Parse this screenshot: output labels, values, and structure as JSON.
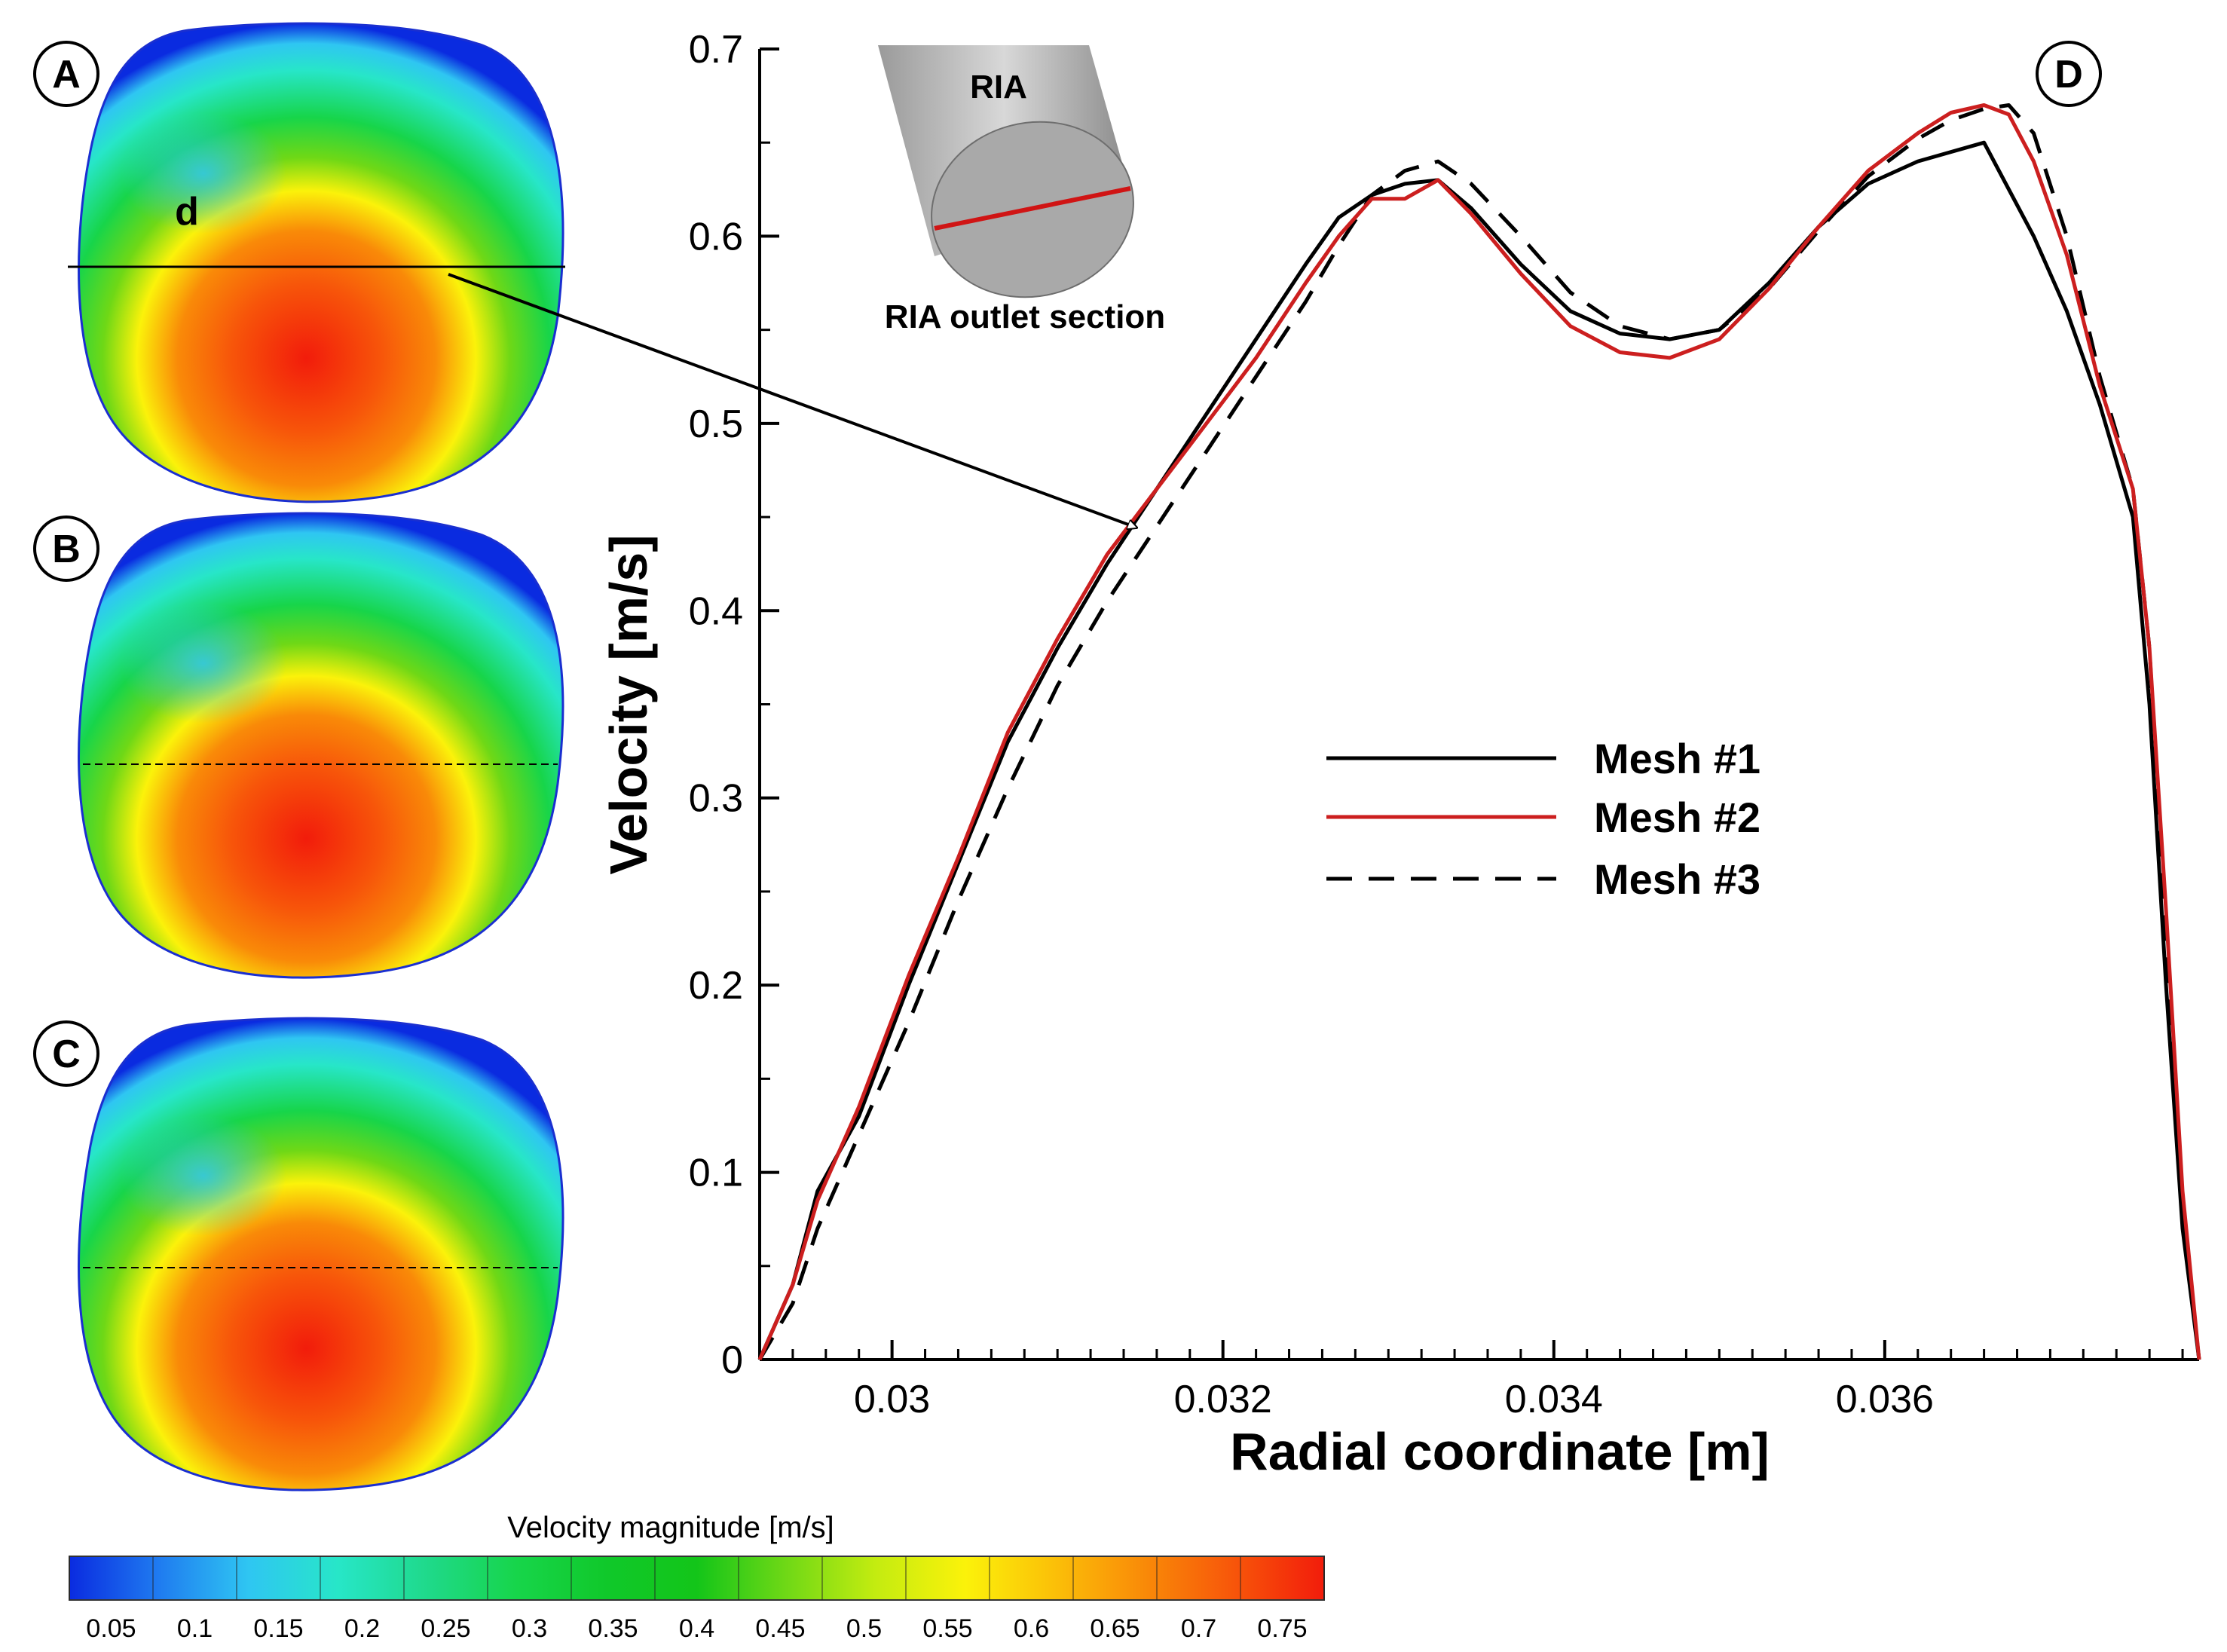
{
  "panels": {
    "labels": [
      "A",
      "B",
      "C",
      "D"
    ],
    "contour_marker": "d",
    "colorbar": {
      "title": "Velocity magnitude [m/s]",
      "ticks": [
        "0.05",
        "0.1",
        "0.15",
        "0.2",
        "0.25",
        "0.3",
        "0.35",
        "0.4",
        "0.45",
        "0.5",
        "0.55",
        "0.6",
        "0.65",
        "0.7",
        "0.75"
      ],
      "stops": [
        "#0a2be0",
        "#1f7bf0",
        "#2fc6f2",
        "#27e6c8",
        "#1fd98a",
        "#17d54a",
        "#10c82a",
        "#13c519",
        "#6fd816",
        "#c4ec10",
        "#fbf20a",
        "#fbbf08",
        "#f98a08",
        "#f7550a",
        "#f21c0b"
      ]
    }
  },
  "inset": {
    "label_top": "RIA",
    "label_bottom": "RIA outlet section"
  },
  "chart_data": {
    "type": "line",
    "xlabel": "Radial coordinate [m]",
    "ylabel": "Velocity [m/s]",
    "xlim": [
      0.0292,
      0.0379
    ],
    "ylim": [
      0,
      0.7
    ],
    "xticks": [
      0.03,
      0.032,
      0.034,
      0.036
    ],
    "xtick_labels": [
      "0.03",
      "0.032",
      "0.034",
      "0.036"
    ],
    "yticks": [
      0,
      0.1,
      0.2,
      0.3,
      0.4,
      0.5,
      0.6,
      0.7
    ],
    "ytick_labels": [
      "0",
      "0.1",
      "0.2",
      "0.3",
      "0.4",
      "0.5",
      "0.6",
      "0.7"
    ],
    "legend_position": "center-right",
    "series": [
      {
        "name": "Mesh #1",
        "color": "#000000",
        "dash": "solid",
        "points": [
          [
            0.0292,
            0.0
          ],
          [
            0.0294,
            0.04
          ],
          [
            0.02955,
            0.09
          ],
          [
            0.0298,
            0.13
          ],
          [
            0.0301,
            0.2
          ],
          [
            0.0304,
            0.265
          ],
          [
            0.0307,
            0.33
          ],
          [
            0.031,
            0.38
          ],
          [
            0.0313,
            0.425
          ],
          [
            0.0316,
            0.465
          ],
          [
            0.0319,
            0.505
          ],
          [
            0.0322,
            0.545
          ],
          [
            0.0325,
            0.585
          ],
          [
            0.0327,
            0.61
          ],
          [
            0.0329,
            0.622
          ],
          [
            0.0331,
            0.628
          ],
          [
            0.0333,
            0.63
          ],
          [
            0.0335,
            0.615
          ],
          [
            0.0338,
            0.585
          ],
          [
            0.0341,
            0.56
          ],
          [
            0.0344,
            0.548
          ],
          [
            0.0347,
            0.545
          ],
          [
            0.035,
            0.55
          ],
          [
            0.0353,
            0.575
          ],
          [
            0.0356,
            0.605
          ],
          [
            0.0359,
            0.628
          ],
          [
            0.0362,
            0.64
          ],
          [
            0.0364,
            0.645
          ],
          [
            0.0366,
            0.65
          ],
          [
            0.03675,
            0.625
          ],
          [
            0.0369,
            0.6
          ],
          [
            0.0371,
            0.56
          ],
          [
            0.0373,
            0.51
          ],
          [
            0.0375,
            0.45
          ],
          [
            0.0376,
            0.35
          ],
          [
            0.0377,
            0.2
          ],
          [
            0.0378,
            0.07
          ],
          [
            0.0379,
            0.0
          ]
        ]
      },
      {
        "name": "Mesh #2",
        "color": "#cc1f1f",
        "dash": "solid",
        "points": [
          [
            0.0292,
            0.0
          ],
          [
            0.0294,
            0.04
          ],
          [
            0.02955,
            0.085
          ],
          [
            0.0298,
            0.135
          ],
          [
            0.0301,
            0.205
          ],
          [
            0.0304,
            0.268
          ],
          [
            0.0307,
            0.335
          ],
          [
            0.031,
            0.385
          ],
          [
            0.0313,
            0.43
          ],
          [
            0.0316,
            0.465
          ],
          [
            0.0319,
            0.5
          ],
          [
            0.0322,
            0.535
          ],
          [
            0.0325,
            0.575
          ],
          [
            0.0327,
            0.6
          ],
          [
            0.0329,
            0.62
          ],
          [
            0.0331,
            0.62
          ],
          [
            0.0333,
            0.63
          ],
          [
            0.0335,
            0.612
          ],
          [
            0.0338,
            0.58
          ],
          [
            0.0341,
            0.552
          ],
          [
            0.0344,
            0.538
          ],
          [
            0.0347,
            0.535
          ],
          [
            0.035,
            0.545
          ],
          [
            0.0353,
            0.572
          ],
          [
            0.0356,
            0.605
          ],
          [
            0.0359,
            0.635
          ],
          [
            0.0362,
            0.655
          ],
          [
            0.0364,
            0.666
          ],
          [
            0.0366,
            0.67
          ],
          [
            0.03675,
            0.665
          ],
          [
            0.0369,
            0.64
          ],
          [
            0.0371,
            0.59
          ],
          [
            0.0373,
            0.52
          ],
          [
            0.0375,
            0.465
          ],
          [
            0.0376,
            0.38
          ],
          [
            0.0377,
            0.24
          ],
          [
            0.0378,
            0.09
          ],
          [
            0.0379,
            0.0
          ]
        ]
      },
      {
        "name": "Mesh #3",
        "color": "#000000",
        "dash": "dashed",
        "points": [
          [
            0.0292,
            0.0
          ],
          [
            0.0294,
            0.03
          ],
          [
            0.02955,
            0.07
          ],
          [
            0.0298,
            0.12
          ],
          [
            0.0301,
            0.18
          ],
          [
            0.0304,
            0.245
          ],
          [
            0.0307,
            0.305
          ],
          [
            0.031,
            0.36
          ],
          [
            0.0313,
            0.405
          ],
          [
            0.0316,
            0.445
          ],
          [
            0.0319,
            0.485
          ],
          [
            0.0322,
            0.525
          ],
          [
            0.0325,
            0.565
          ],
          [
            0.0327,
            0.595
          ],
          [
            0.0329,
            0.622
          ],
          [
            0.0331,
            0.635
          ],
          [
            0.0333,
            0.64
          ],
          [
            0.0335,
            0.628
          ],
          [
            0.0338,
            0.6
          ],
          [
            0.0341,
            0.57
          ],
          [
            0.0344,
            0.552
          ],
          [
            0.0347,
            0.545
          ],
          [
            0.035,
            0.55
          ],
          [
            0.0353,
            0.572
          ],
          [
            0.0356,
            0.603
          ],
          [
            0.0359,
            0.632
          ],
          [
            0.0362,
            0.652
          ],
          [
            0.0364,
            0.662
          ],
          [
            0.0366,
            0.668
          ],
          [
            0.03675,
            0.67
          ],
          [
            0.0369,
            0.655
          ],
          [
            0.0371,
            0.6
          ],
          [
            0.0373,
            0.525
          ],
          [
            0.0375,
            0.465
          ],
          [
            0.0376,
            0.38
          ],
          [
            0.0377,
            0.22
          ],
          [
            0.0378,
            0.08
          ],
          [
            0.0379,
            0.0
          ]
        ]
      }
    ]
  }
}
